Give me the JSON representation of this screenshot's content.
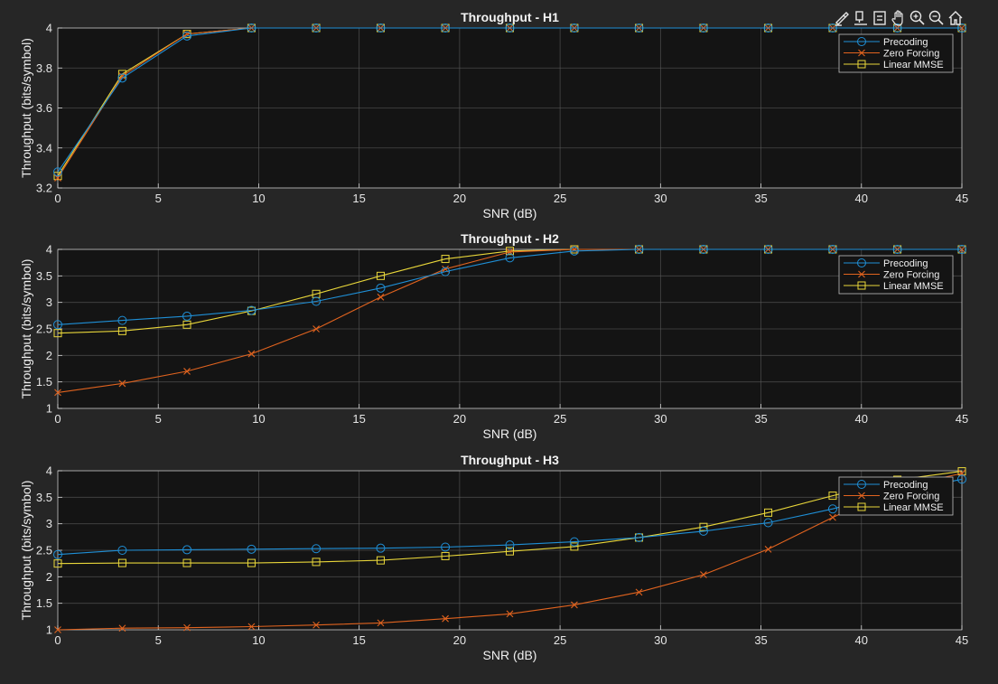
{
  "colors": {
    "background": "#262626",
    "axes": "#141414",
    "grid": "#595959",
    "Precoding": "#1f8fd6",
    "Zero Forcing": "#e0631f",
    "Linear MMSE": "#e8d63a"
  },
  "toolbar": [
    "brush-icon",
    "data-tips-icon",
    "restore-view-icon",
    "pan-icon",
    "zoom-in-icon",
    "zoom-out-icon",
    "home-icon"
  ],
  "chart_data": [
    {
      "type": "line",
      "title": "Throughput - H1",
      "xlabel": "SNR (dB)",
      "ylabel": "Throughput (bits/symbol)",
      "xlim": [
        0,
        45
      ],
      "ylim": [
        3.2,
        4
      ],
      "xticks": [
        0,
        5,
        10,
        15,
        20,
        25,
        30,
        35,
        40,
        45
      ],
      "yticks": [
        3.2,
        3.4,
        3.6,
        3.8,
        4
      ],
      "yticklabels": [
        "3.2",
        "3.4",
        "3.6",
        "3.8",
        "4"
      ],
      "grid": true,
      "legend": "top-right",
      "x": [
        0,
        3.21,
        6.43,
        9.64,
        12.86,
        16.07,
        19.29,
        22.5,
        25.71,
        28.93,
        32.14,
        35.36,
        38.57,
        41.79,
        45
      ],
      "series": [
        {
          "name": "Precoding",
          "marker": "circle",
          "values": [
            3.28,
            3.75,
            3.96,
            4,
            4,
            4,
            4,
            4,
            4,
            4,
            4,
            4,
            4,
            4,
            4
          ]
        },
        {
          "name": "Zero Forcing",
          "marker": "x",
          "values": [
            3.25,
            3.76,
            3.97,
            4,
            4,
            4,
            4,
            4,
            4,
            4,
            4,
            4,
            4,
            4,
            4
          ]
        },
        {
          "name": "Linear MMSE",
          "marker": "square",
          "values": [
            3.26,
            3.77,
            3.97,
            4,
            4,
            4,
            4,
            4,
            4,
            4,
            4,
            4,
            4,
            4,
            4
          ]
        }
      ]
    },
    {
      "type": "line",
      "title": "Throughput - H2",
      "xlabel": "SNR (dB)",
      "ylabel": "Throughput (bits/symbol)",
      "xlim": [
        0,
        45
      ],
      "ylim": [
        1,
        4
      ],
      "xticks": [
        0,
        5,
        10,
        15,
        20,
        25,
        30,
        35,
        40,
        45
      ],
      "yticks": [
        1,
        1.5,
        2,
        2.5,
        3,
        3.5,
        4
      ],
      "yticklabels": [
        "1",
        "1.5",
        "2",
        "2.5",
        "3",
        "3.5",
        "4"
      ],
      "grid": true,
      "legend": "top-right",
      "x": [
        0,
        3.21,
        6.43,
        9.64,
        12.86,
        16.07,
        19.29,
        22.5,
        25.71,
        28.93,
        32.14,
        35.36,
        38.57,
        41.79,
        45
      ],
      "series": [
        {
          "name": "Precoding",
          "marker": "circle",
          "values": [
            2.58,
            2.66,
            2.74,
            2.85,
            3.02,
            3.27,
            3.58,
            3.84,
            3.97,
            4,
            4,
            4,
            4,
            4,
            4
          ]
        },
        {
          "name": "Zero Forcing",
          "marker": "x",
          "values": [
            1.3,
            1.47,
            1.7,
            2.03,
            2.5,
            3.1,
            3.63,
            3.95,
            4,
            4,
            4,
            4,
            4,
            4,
            4
          ]
        },
        {
          "name": "Linear MMSE",
          "marker": "square",
          "values": [
            2.42,
            2.46,
            2.58,
            2.84,
            3.16,
            3.5,
            3.82,
            3.97,
            4,
            4,
            4,
            4,
            4,
            4,
            4
          ]
        }
      ]
    },
    {
      "type": "line",
      "title": "Throughput - H3",
      "xlabel": "SNR (dB)",
      "ylabel": "Throughput (bits/symbol)",
      "xlim": [
        0,
        45
      ],
      "ylim": [
        1,
        4
      ],
      "xticks": [
        0,
        5,
        10,
        15,
        20,
        25,
        30,
        35,
        40,
        45
      ],
      "yticks": [
        1,
        1.5,
        2,
        2.5,
        3,
        3.5,
        4
      ],
      "yticklabels": [
        "1",
        "1.5",
        "2",
        "2.5",
        "3",
        "3.5",
        "4"
      ],
      "grid": true,
      "legend": "top-right",
      "x": [
        0,
        3.21,
        6.43,
        9.64,
        12.86,
        16.07,
        19.29,
        22.5,
        25.71,
        28.93,
        32.14,
        35.36,
        38.57,
        41.79,
        45
      ],
      "series": [
        {
          "name": "Precoding",
          "marker": "circle",
          "values": [
            2.42,
            2.5,
            2.51,
            2.52,
            2.53,
            2.54,
            2.56,
            2.6,
            2.66,
            2.74,
            2.86,
            3.02,
            3.28,
            3.6,
            3.84
          ]
        },
        {
          "name": "Zero Forcing",
          "marker": "x",
          "values": [
            1,
            1.03,
            1.04,
            1.06,
            1.09,
            1.13,
            1.21,
            1.3,
            1.47,
            1.71,
            2.04,
            2.52,
            3.12,
            3.68,
            3.95
          ]
        },
        {
          "name": "Linear MMSE",
          "marker": "square",
          "values": [
            2.25,
            2.26,
            2.26,
            2.26,
            2.28,
            2.31,
            2.39,
            2.48,
            2.57,
            2.74,
            2.94,
            3.21,
            3.53,
            3.83,
            3.99
          ]
        }
      ]
    }
  ]
}
